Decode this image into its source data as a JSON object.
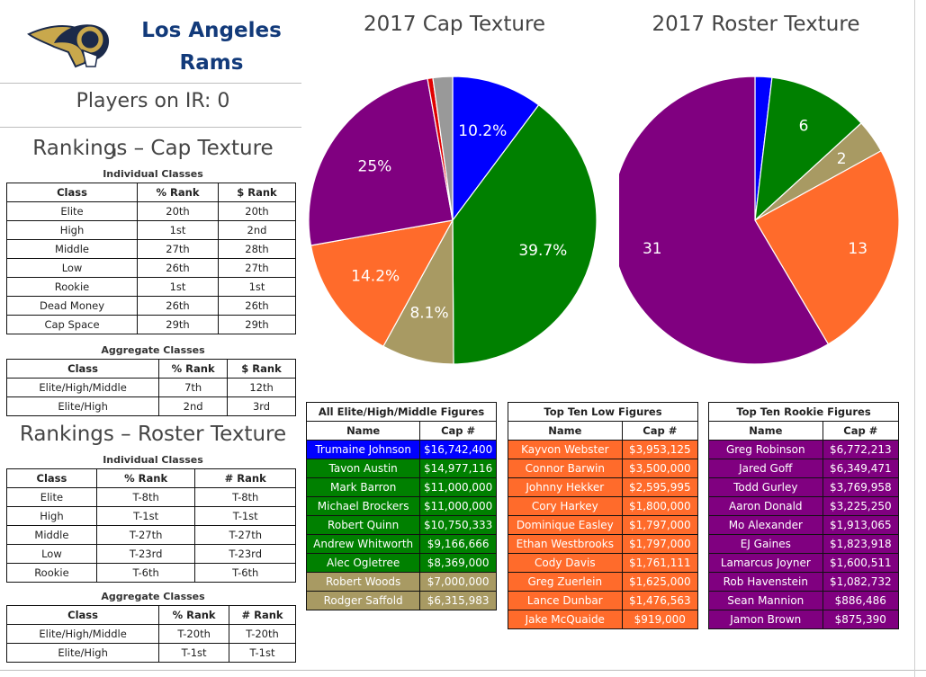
{
  "team": {
    "name_line1": "Los Angeles",
    "name_line2": "Rams"
  },
  "players_on_ir": "Players on IR: 0",
  "cap_rankings": {
    "title": "Rankings – Cap Texture",
    "individual_title": "Individual Classes",
    "individual_headers": [
      "Class",
      "% Rank",
      "$ Rank"
    ],
    "individual_rows": [
      [
        "Elite",
        "20th",
        "20th"
      ],
      [
        "High",
        "1st",
        "2nd"
      ],
      [
        "Middle",
        "27th",
        "28th"
      ],
      [
        "Low",
        "26th",
        "27th"
      ],
      [
        "Rookie",
        "1st",
        "1st"
      ],
      [
        "Dead Money",
        "26th",
        "26th"
      ],
      [
        "Cap Space",
        "29th",
        "29th"
      ]
    ],
    "aggregate_title": "Aggregate Classes",
    "aggregate_headers": [
      "Class",
      "% Rank",
      "$ Rank"
    ],
    "aggregate_rows": [
      [
        "Elite/High/Middle",
        "7th",
        "12th"
      ],
      [
        "Elite/High",
        "2nd",
        "3rd"
      ]
    ]
  },
  "roster_rankings": {
    "title": "Rankings – Roster Texture",
    "individual_title": "Individual Classes",
    "individual_headers": [
      "Class",
      "% Rank",
      "# Rank"
    ],
    "individual_rows": [
      [
        "Elite",
        "T-8th",
        "T-8th"
      ],
      [
        "High",
        "T-1st",
        "T-1st"
      ],
      [
        "Middle",
        "T-27th",
        "T-27th"
      ],
      [
        "Low",
        "T-23rd",
        "T-23rd"
      ],
      [
        "Rookie",
        "T-6th",
        "T-6th"
      ]
    ],
    "aggregate_title": "Aggregate Classes",
    "aggregate_headers": [
      "Class",
      "% Rank",
      "# Rank"
    ],
    "aggregate_rows": [
      [
        "Elite/High/Middle",
        "T-20th",
        "T-20th"
      ],
      [
        "Elite/High",
        "T-1st",
        "T-1st"
      ]
    ]
  },
  "colors": {
    "elite": "#0000ff",
    "high": "#008000",
    "middle": "#a89a63",
    "low": "#ff6b2b",
    "rookie": "#800080",
    "dead_money": "#e00000",
    "cap_space": "#999999"
  },
  "chart_data": [
    {
      "type": "pie",
      "title": "2017 Cap Texture",
      "slices": [
        {
          "value": 10.2,
          "label": "10.2%",
          "color": "#0000ff"
        },
        {
          "value": 39.7,
          "label": "39.7%",
          "color": "#008000"
        },
        {
          "value": 8.1,
          "label": "8.1%",
          "color": "#a89a63"
        },
        {
          "value": 14.2,
          "label": "14.2%",
          "color": "#ff6b2b"
        },
        {
          "value": 25.0,
          "label": "25%",
          "color": "#800080"
        },
        {
          "value": 0.6,
          "label": "",
          "color": "#e00000"
        },
        {
          "value": 2.2,
          "label": "",
          "color": "#999999"
        }
      ]
    },
    {
      "type": "pie",
      "title": "2017 Roster Texture",
      "slices": [
        {
          "value": 1,
          "label": "",
          "color": "#0000ff"
        },
        {
          "value": 6,
          "label": "6",
          "color": "#008000"
        },
        {
          "value": 2,
          "label": "2",
          "color": "#a89a63"
        },
        {
          "value": 13,
          "label": "13",
          "color": "#ff6b2b"
        },
        {
          "value": 31,
          "label": "31",
          "color": "#800080"
        }
      ]
    }
  ],
  "figures": [
    {
      "title": "All Elite/High/Middle Figures",
      "headers": [
        "Name",
        "Cap #"
      ],
      "rows": [
        {
          "name": "Trumaine Johnson",
          "cap": "$16,742,400",
          "cls": "bl"
        },
        {
          "name": "Tavon Austin",
          "cap": "$14,977,116",
          "cls": "gr"
        },
        {
          "name": "Mark Barron",
          "cap": "$11,000,000",
          "cls": "gr"
        },
        {
          "name": "Michael Brockers",
          "cap": "$11,000,000",
          "cls": "gr"
        },
        {
          "name": "Robert Quinn",
          "cap": "$10,750,333",
          "cls": "gr"
        },
        {
          "name": "Andrew Whitworth",
          "cap": "$9,166,666",
          "cls": "gr"
        },
        {
          "name": "Alec Ogletree",
          "cap": "$8,369,000",
          "cls": "gr"
        },
        {
          "name": "Robert Woods",
          "cap": "$7,000,000",
          "cls": "tn"
        },
        {
          "name": "Rodger Saffold",
          "cap": "$6,315,983",
          "cls": "tn"
        }
      ]
    },
    {
      "title": "Top Ten Low Figures",
      "headers": [
        "Name",
        "Cap #"
      ],
      "rows": [
        {
          "name": "Kayvon Webster",
          "cap": "$3,953,125",
          "cls": "or"
        },
        {
          "name": "Connor Barwin",
          "cap": "$3,500,000",
          "cls": "or"
        },
        {
          "name": "Johnny Hekker",
          "cap": "$2,595,995",
          "cls": "or"
        },
        {
          "name": "Cory Harkey",
          "cap": "$1,800,000",
          "cls": "or"
        },
        {
          "name": "Dominique Easley",
          "cap": "$1,797,000",
          "cls": "or"
        },
        {
          "name": "Ethan Westbrooks",
          "cap": "$1,797,000",
          "cls": "or"
        },
        {
          "name": "Cody Davis",
          "cap": "$1,761,111",
          "cls": "or"
        },
        {
          "name": "Greg Zuerlein",
          "cap": "$1,625,000",
          "cls": "or"
        },
        {
          "name": "Lance Dunbar",
          "cap": "$1,476,563",
          "cls": "or"
        },
        {
          "name": "Jake McQuaide",
          "cap": "$919,000",
          "cls": "or"
        }
      ]
    },
    {
      "title": "Top Ten Rookie Figures",
      "headers": [
        "Name",
        "Cap #"
      ],
      "rows": [
        {
          "name": "Greg Robinson",
          "cap": "$6,772,213",
          "cls": "pu"
        },
        {
          "name": "Jared Goff",
          "cap": "$6,349,471",
          "cls": "pu"
        },
        {
          "name": "Todd Gurley",
          "cap": "$3,769,958",
          "cls": "pu"
        },
        {
          "name": "Aaron Donald",
          "cap": "$3,225,250",
          "cls": "pu"
        },
        {
          "name": "Mo Alexander",
          "cap": "$1,913,065",
          "cls": "pu"
        },
        {
          "name": "EJ Gaines",
          "cap": "$1,823,918",
          "cls": "pu"
        },
        {
          "name": "Lamarcus Joyner",
          "cap": "$1,600,511",
          "cls": "pu"
        },
        {
          "name": "Rob Havenstein",
          "cap": "$1,082,732",
          "cls": "pu"
        },
        {
          "name": "Sean Mannion",
          "cap": "$886,486",
          "cls": "pu"
        },
        {
          "name": "Jamon Brown",
          "cap": "$875,390",
          "cls": "pu"
        }
      ]
    }
  ]
}
